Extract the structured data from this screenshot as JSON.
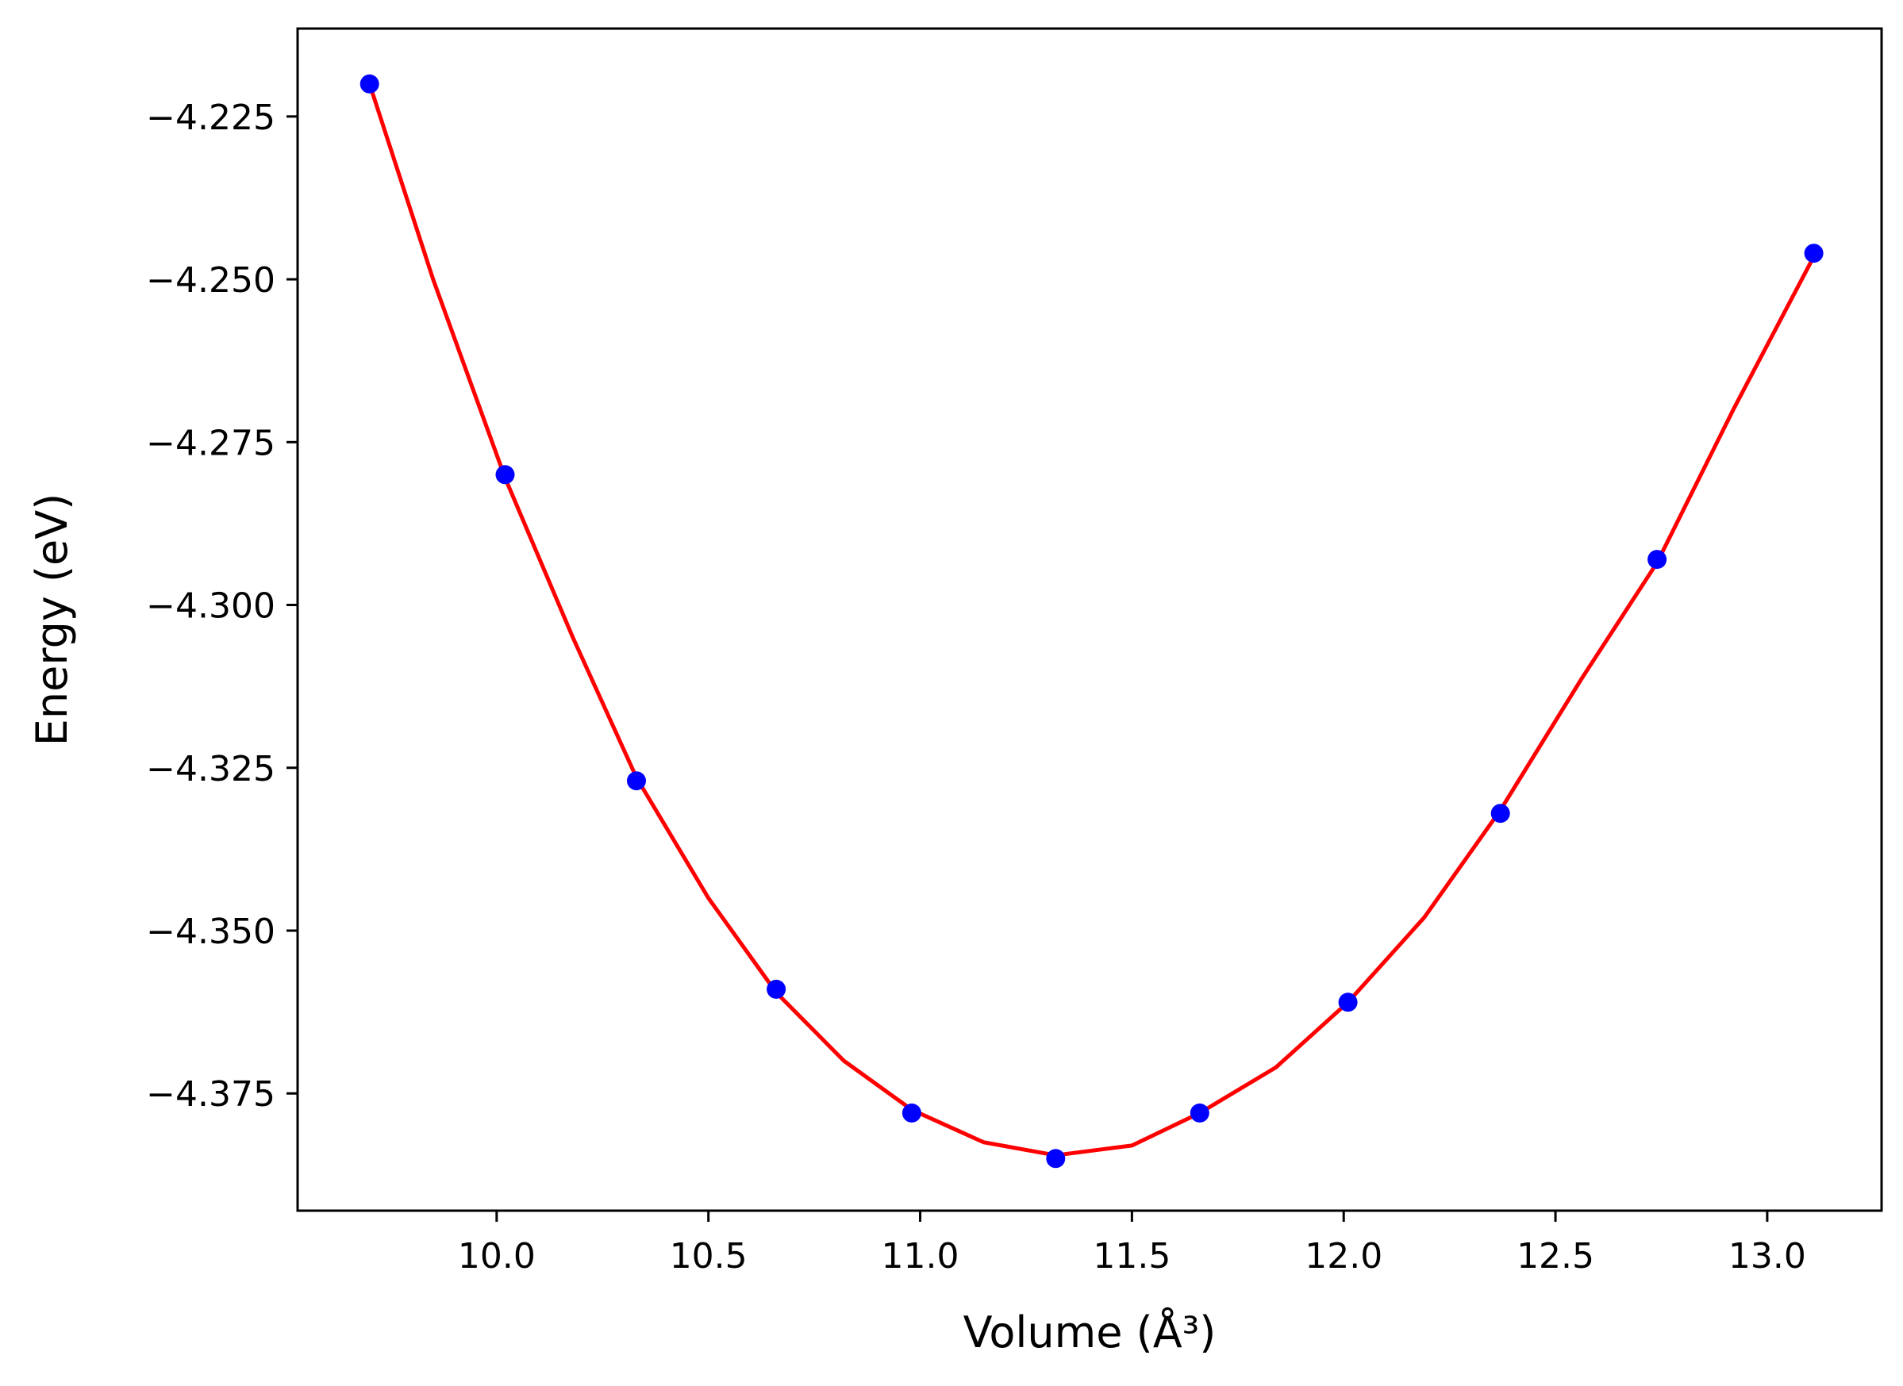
{
  "chart_data": {
    "type": "scatter",
    "title": "",
    "xlabel": "Volume (Å³)",
    "ylabel": "Energy (eV)",
    "xlim": [
      9.53,
      13.27
    ],
    "ylim": [
      -4.393,
      -4.2115
    ],
    "x_ticks": [
      10.0,
      10.5,
      11.0,
      11.5,
      12.0,
      12.5,
      13.0
    ],
    "x_tick_labels": [
      "10.0",
      "10.5",
      "11.0",
      "11.5",
      "12.0",
      "12.5",
      "13.0"
    ],
    "y_ticks": [
      -4.225,
      -4.25,
      -4.275,
      -4.3,
      -4.325,
      -4.35,
      -4.375
    ],
    "y_tick_labels": [
      "−4.225",
      "−4.250",
      "−4.275",
      "−4.300",
      "−4.325",
      "−4.350",
      "−4.375"
    ],
    "grid": false,
    "series": [
      {
        "kind": "points",
        "color": "#0000ff",
        "x": [
          9.7,
          10.02,
          10.33,
          10.66,
          10.98,
          11.32,
          11.66,
          12.01,
          12.37,
          12.74,
          13.11
        ],
        "y": [
          -4.22,
          -4.28,
          -4.327,
          -4.359,
          -4.378,
          -4.385,
          -4.378,
          -4.361,
          -4.332,
          -4.293,
          -4.246
        ]
      },
      {
        "kind": "fit-line",
        "color": "#ff0000",
        "x": [
          9.7,
          9.85,
          10.02,
          10.18,
          10.33,
          10.5,
          10.66,
          10.82,
          10.98,
          11.15,
          11.32,
          11.5,
          11.66,
          11.84,
          12.01,
          12.19,
          12.37,
          12.56,
          12.74,
          12.92,
          13.11
        ],
        "y": [
          -4.22,
          -4.25,
          -4.2805,
          -4.305,
          -4.3265,
          -4.345,
          -4.3595,
          -4.37,
          -4.3775,
          -4.3825,
          -4.3845,
          -4.383,
          -4.378,
          -4.371,
          -4.361,
          -4.348,
          -4.3315,
          -4.3115,
          -4.2935,
          -4.27,
          -4.2465
        ]
      }
    ]
  }
}
